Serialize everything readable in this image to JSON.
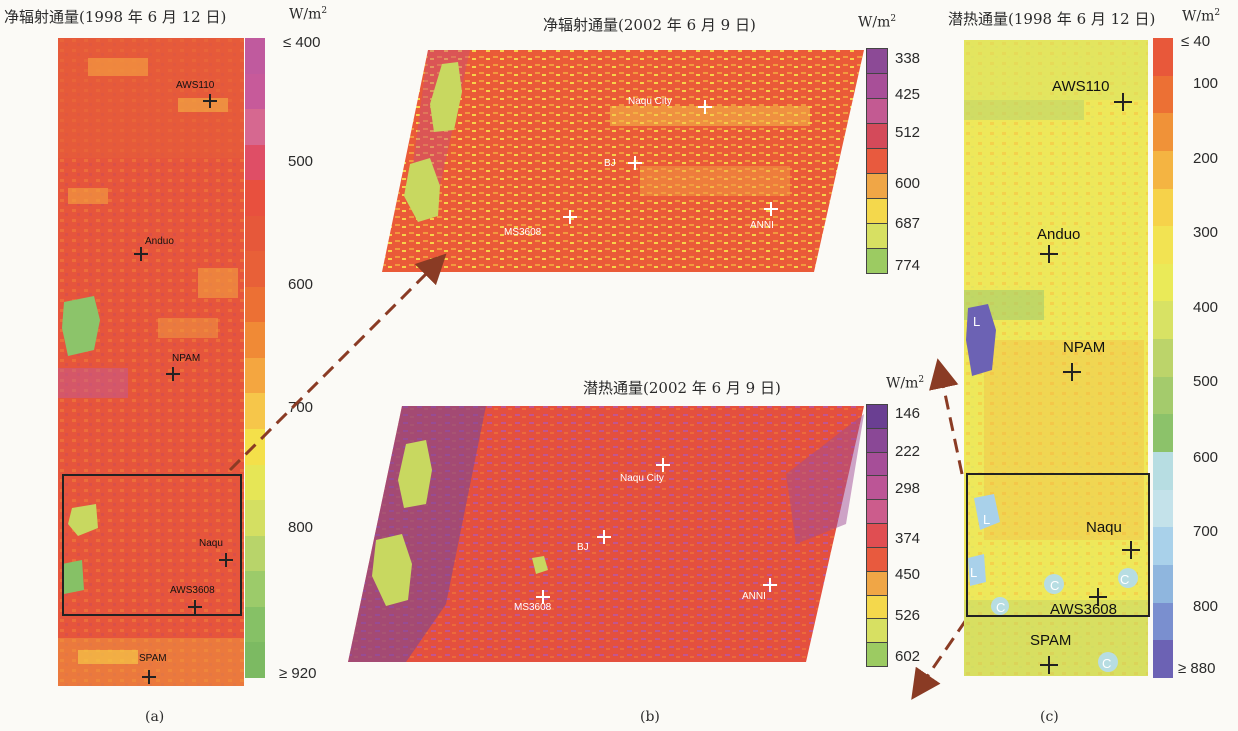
{
  "panel_a": {
    "title": "净辐射通量(1998 年 6 月 12 日)",
    "unit": "W/m",
    "unit_sup": "2",
    "ticks": [
      "≤ 400",
      "500",
      "600",
      "700",
      "800",
      "≥ 920"
    ],
    "sites": [
      "AWS110",
      "Anduo",
      "NPAM",
      "Naqu",
      "AWS3608",
      "SPAM"
    ],
    "label": "(a)",
    "colors": [
      "#c05a9e",
      "#c75a9a",
      "#d66890",
      "#df4e66",
      "#e8503e",
      "#e6583a",
      "#e86038",
      "#ec7034",
      "#f08a36",
      "#f4a640",
      "#f6c64a",
      "#f4e04a",
      "#e6e656",
      "#d4df62",
      "#b8d46a",
      "#9ccb6a",
      "#86c166",
      "#7cba62"
    ]
  },
  "panel_b_top": {
    "title": "净辐射通量(2002 年 6 月 9 日)",
    "unit": "W/m",
    "unit_sup": "2",
    "ticks": [
      "338",
      "425",
      "512",
      "600",
      "687",
      "774"
    ],
    "sites": [
      "Naqu City",
      "BJ",
      "MS3608",
      "ANNI"
    ],
    "colors": [
      "#8c4a96",
      "#a84f98",
      "#c35a92",
      "#d44a5a",
      "#e85a3e",
      "#f0a646",
      "#f4d84c",
      "#d7e062",
      "#9ccb62"
    ]
  },
  "panel_b_bottom": {
    "title": "潜热通量(2002 年 6 月 9 日)",
    "unit": "W/m",
    "unit_sup": "2",
    "ticks": [
      "146",
      "222",
      "298",
      "374",
      "450",
      "526",
      "602"
    ],
    "sites": [
      "Naqu City",
      "BJ",
      "MS3608",
      "ANNI"
    ],
    "colors": [
      "#6a3f92",
      "#8a4896",
      "#a64e98",
      "#bc5596",
      "#cc5c8c",
      "#e04e52",
      "#e85a3e",
      "#f0a646",
      "#f4d84c",
      "#d7e062",
      "#9ccb62"
    ]
  },
  "panel_b_label": "(b)",
  "panel_c": {
    "title": "潜热通量(1998 年 6 月 12 日)",
    "unit": "W/m",
    "unit_sup": "2",
    "ticks": [
      "≤ 40",
      "100",
      "200",
      "300",
      "400",
      "500",
      "600",
      "700",
      "800",
      "≥ 880"
    ],
    "sites": [
      "AWS110",
      "Anduo",
      "NPAM",
      "Naqu",
      "AWS3608",
      "SPAM"
    ],
    "marks": [
      "L",
      "L",
      "L",
      "C",
      "C",
      "C",
      "C"
    ],
    "label": "(c)",
    "colors": [
      "#e8583a",
      "#ec7034",
      "#f09238",
      "#f4b442",
      "#f6d24a",
      "#f2e352",
      "#eaea58",
      "#d8e264",
      "#bcd46a",
      "#a4cb6c",
      "#8cc26a",
      "#b7dde2",
      "#c4e2ea",
      "#a9d1ea",
      "#8fb6de",
      "#7a8fcf",
      "#6c62b4"
    ]
  }
}
